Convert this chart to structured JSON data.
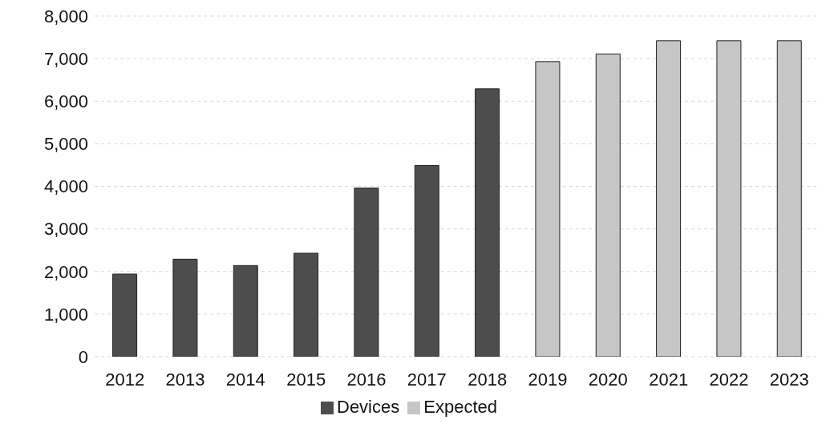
{
  "chart_data": {
    "type": "bar",
    "stacked": true,
    "categories": [
      "2012",
      "2013",
      "2014",
      "2015",
      "2016",
      "2017",
      "2018",
      "2019",
      "2020",
      "2021",
      "2022",
      "2023"
    ],
    "series": [
      {
        "name": "Devices",
        "color": "#4d4d4d",
        "values": [
          1940,
          2290,
          2140,
          2430,
          3960,
          4490,
          6290,
          null,
          null,
          null,
          null,
          null
        ]
      },
      {
        "name": "Expected",
        "color": "#c6c6c6",
        "values": [
          null,
          null,
          null,
          null,
          null,
          null,
          null,
          6930,
          7110,
          7420,
          7420,
          7420
        ]
      }
    ],
    "ylim": [
      0,
      8000
    ],
    "yticks": [
      0,
      {
        "value": 1000,
        "label": "1,000"
      },
      {
        "value": 2000,
        "label": "2,000"
      },
      {
        "value": 3000,
        "label": "3,000"
      },
      {
        "value": 4000,
        "label": "4,000"
      },
      {
        "value": 5000,
        "label": "5,000"
      },
      {
        "value": 6000,
        "label": "6,000"
      },
      {
        "value": 7000,
        "label": "7,000"
      },
      {
        "value": 8000,
        "label": "8,000"
      }
    ],
    "grid": "y",
    "legend": "bottom"
  }
}
